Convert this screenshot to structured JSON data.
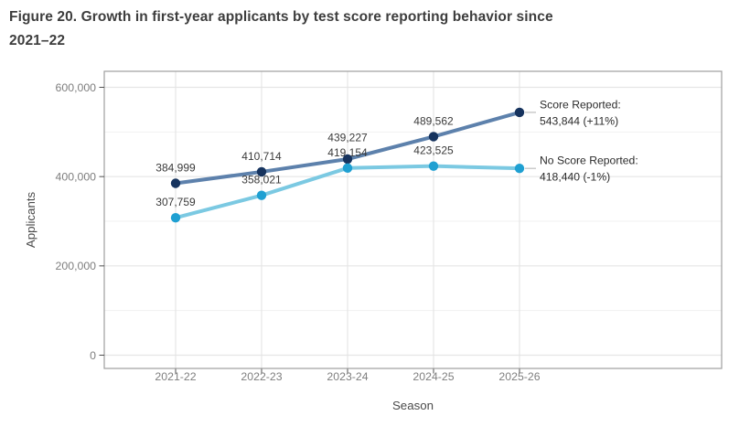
{
  "header": {
    "title_line1": "Figure 20. Growth in first-year applicants by test score reporting behavior since",
    "title_line2": "2021–22"
  },
  "chart_data": {
    "type": "line",
    "title": "Figure 20. Growth in first-year applicants by test score reporting behavior since 2021–22",
    "xlabel": "Season",
    "ylabel": "Applicants",
    "categories": [
      "2021-22",
      "2022-23",
      "2023-24",
      "2024-25",
      "2025-26"
    ],
    "series": [
      {
        "name": "Score Reported",
        "values": [
          384999,
          410714,
          439227,
          489562,
          543844
        ],
        "point_labels": [
          "384,999",
          "410,714",
          "439,227",
          "489,562",
          ""
        ],
        "line_color": "#5d81ac",
        "point_color": "#16335e",
        "annotation": [
          "Score Reported:",
          "543,844 (+11%)"
        ]
      },
      {
        "name": "No Score Reported",
        "values": [
          307759,
          358021,
          419154,
          423525,
          418440
        ],
        "point_labels": [
          "307,759",
          "358,021",
          "419,154",
          "423,525",
          ""
        ],
        "line_color": "#7bc9e2",
        "point_color": "#1fa0d2",
        "annotation": [
          "No Score Reported:",
          "418,440 (-1%)"
        ]
      }
    ],
    "ylim": [
      0,
      600000
    ],
    "yticks": [
      0,
      200000,
      400000,
      600000
    ],
    "ytick_labels": [
      "0",
      "200,000",
      "400,000",
      "600,000"
    ],
    "yminor": [
      100000,
      300000,
      500000
    ],
    "grid": true,
    "legend_position": "right-inline-annotations"
  }
}
